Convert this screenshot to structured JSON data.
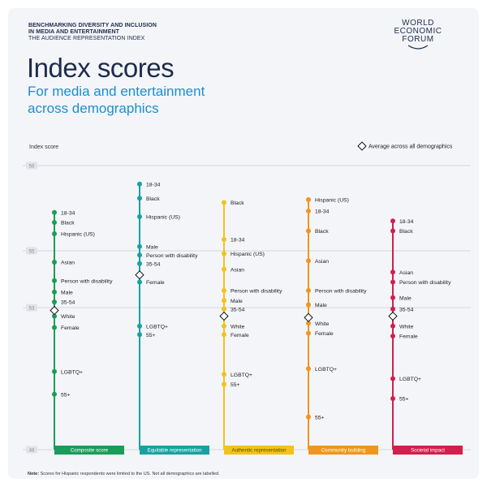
{
  "header": {
    "line1": "BENCHMARKING DIVERSITY AND INCLUSION",
    "line2": "IN MEDIA AND ENTERTAINMENT",
    "line3": "THE AUDIENCE REPRESENTATION INDEX",
    "title": "Index scores",
    "subtitle_line1": "For media and entertainment",
    "subtitle_line2": "across demographics"
  },
  "logo": {
    "line1": "WORLD",
    "line2": "ECONOMIC",
    "line3": "FORUM"
  },
  "note": {
    "label": "Note:",
    "text": "Scores for Hispanic respondents were limited to the US. Not all demographics are labelled."
  },
  "chart_data": {
    "type": "scatter",
    "ylabel": "Index score",
    "ylim": [
      48,
      58
    ],
    "yticks": [
      48,
      53,
      55,
      58
    ],
    "grid": true,
    "legend": {
      "label": "Average across all demographics",
      "placement": "top-right"
    },
    "series": [
      {
        "name": "Composite score",
        "color": "#1a9d5a",
        "points": [
          {
            "label": "18-34",
            "value": 56.35
          },
          {
            "label": "Black",
            "value": 56.0
          },
          {
            "label": "Hispanic (US)",
            "value": 55.6
          },
          {
            "label": "Asian",
            "value": 54.6
          },
          {
            "label": "Person with disability",
            "value": 53.95
          },
          {
            "label": "Male",
            "value": 53.55
          },
          {
            "label": "35-54",
            "value": 53.2
          },
          {
            "label": "White",
            "value": 52.7
          },
          {
            "label": "Female",
            "value": 52.3
          },
          {
            "label": "LGBTQ+",
            "value": 50.75
          },
          {
            "label": "55+",
            "value": 49.95
          }
        ],
        "average": 52.9
      },
      {
        "name": "Equitable representation",
        "color": "#17a2a0",
        "points": [
          {
            "label": "18-34",
            "value": 57.35
          },
          {
            "label": "Black",
            "value": 56.85
          },
          {
            "label": "Hispanic (US)",
            "value": 56.2
          },
          {
            "label": "Male",
            "value": 55.15
          },
          {
            "label": "Person with disability",
            "value": 54.85
          },
          {
            "label": "35-54",
            "value": 54.55
          },
          {
            "label": "Female",
            "value": 53.9
          },
          {
            "label": "LGBTQ+",
            "value": 52.35
          },
          {
            "label": "55+",
            "value": 52.05
          }
        ],
        "average": 54.15
      },
      {
        "name": "Authentic representation",
        "color": "#f2c31a",
        "points": [
          {
            "label": "Black",
            "value": 56.7
          },
          {
            "label": "18-34",
            "value": 55.4
          },
          {
            "label": "Hispanic (US)",
            "value": 54.9
          },
          {
            "label": "Asian",
            "value": 54.35
          },
          {
            "label": "Person with disability",
            "value": 53.6
          },
          {
            "label": "Male",
            "value": 53.25
          },
          {
            "label": "35-54",
            "value": 52.95
          },
          {
            "label": "White",
            "value": 52.35
          },
          {
            "label": "Female",
            "value": 52.05
          },
          {
            "label": "LGBTQ+",
            "value": 50.65
          },
          {
            "label": "55+",
            "value": 50.3
          }
        ],
        "average": 52.7
      },
      {
        "name": "Community building",
        "color": "#f0961e",
        "points": [
          {
            "label": "Hispanic (US)",
            "value": 56.8
          },
          {
            "label": "18-34",
            "value": 56.4
          },
          {
            "label": "Black",
            "value": 55.7
          },
          {
            "label": "Asian",
            "value": 54.65
          },
          {
            "label": "Person with disability",
            "value": 53.6
          },
          {
            "label": "Male",
            "value": 53.1
          },
          {
            "label": "White",
            "value": 52.45
          },
          {
            "label": "Female",
            "value": 52.1
          },
          {
            "label": "LGBTQ+",
            "value": 50.85
          },
          {
            "label": "55+",
            "value": 49.15
          }
        ],
        "average": 52.65
      },
      {
        "name": "Societal impact",
        "color": "#d21f4c",
        "points": [
          {
            "label": "18-34",
            "value": 56.05
          },
          {
            "label": "Black",
            "value": 55.7
          },
          {
            "label": "Asian",
            "value": 54.25
          },
          {
            "label": "Person with disability",
            "value": 53.9
          },
          {
            "label": "Male",
            "value": 53.35
          },
          {
            "label": "35-54",
            "value": 52.95
          },
          {
            "label": "White",
            "value": 52.35
          },
          {
            "label": "Female",
            "value": 52.0
          },
          {
            "label": "LGBTQ+",
            "value": 50.5
          },
          {
            "label": "55+",
            "value": 49.8
          }
        ],
        "average": 52.7
      }
    ]
  }
}
